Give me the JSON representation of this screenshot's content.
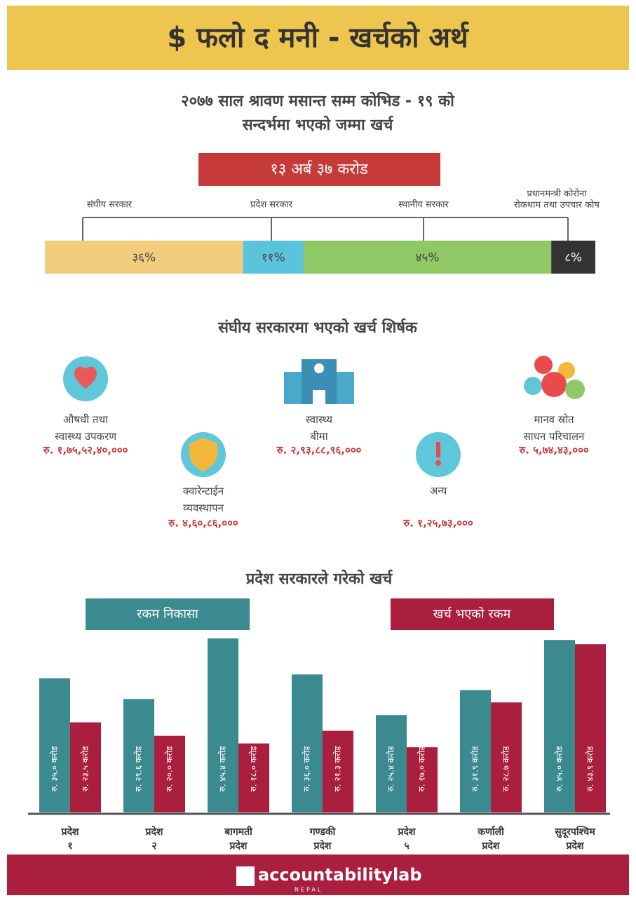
{
  "header": {
    "title": "$ फलो द मनी - खर्चको अर्थ"
  },
  "subtitle": [
    "२०७७ साल श्रावण मसान्त सम्म कोभिड - १९ को",
    "सन्दर्भमा भएको जम्मा खर्च"
  ],
  "total": "१३ अर्ब ३७ करोड",
  "chart_data": [
    {
      "type": "stacked_bar",
      "categories": [
        "संघीय सरकार",
        "प्रदेश सरकार",
        "स्थानीय सरकार",
        "प्रधानमन्त्री कोरोना रोकथाम तथा उपचार कोष"
      ],
      "values": [
        36,
        11,
        45,
        8
      ],
      "value_labels": [
        "३६%",
        "११%",
        "४५%",
        "८%"
      ],
      "colors": [
        "#f2cd7d",
        "#5bc3dc",
        "#8fc965",
        "#333333"
      ]
    },
    {
      "type": "bar",
      "title": "प्रदेश सरकारले गरेको खर्च",
      "categories": [
        "प्रदेश १",
        "प्रदेश २",
        "बागमती प्रदेश",
        "गण्डकी प्रदेश",
        "प्रदेश ५",
        "कर्णाली प्रदेश",
        "सुदूरपश्चिम प्रदेश"
      ],
      "series": [
        {
          "name": "रकम निकासा",
          "color": "#3a8a8f",
          "values": [
            35.0,
            29.6,
            45.4,
            36.0,
            25.4,
            31.9,
            45.0
          ],
          "value_labels": [
            "रु. ३५.० करोड",
            "रु. २९.६ करोड",
            "रु. ४५.४ करोड",
            "रु. ३६.० करोड",
            "रु. २५.४ करोड",
            "रु. ३१.९ करोड",
            "रु. ४५.० करोड"
          ]
        },
        {
          "name": "खर्च भएको रकम",
          "color": "#a91f3d",
          "values": [
            23.5,
            20.0,
            18.0,
            21.3,
            17.0,
            28.7,
            43.9
          ],
          "value_labels": [
            "रु. २३.५ करोड",
            "रु. २०.० करोड",
            "रु. १८.० करोड",
            "रु. २१.३ करोड",
            "रु. १७.० करोड",
            "रु. २८.७ करोड",
            "रु. ४३.९ करोड"
          ]
        }
      ]
    }
  ],
  "federal": {
    "title": "संघीय सरकारमा भएको खर्च शिर्षक",
    "items": [
      {
        "label": "औषधी तथा स्वास्थ्य उपकरण",
        "amount": "रु. १,७५,५२,४०,०००"
      },
      {
        "label": "क्वारेन्टाईन व्यवस्थापन",
        "amount": "रु. ४,६०,८६,०००"
      },
      {
        "label": "स्वास्थ्य बीमा",
        "amount": "रु. २,९३,८८,९६,०००"
      },
      {
        "label": "अन्य",
        "amount": "रु. १,२५,७३,०००"
      },
      {
        "label": "मानव स्रोत साधन परिचालन",
        "amount": "रु. ५,७४,४३,०००"
      }
    ]
  },
  "footer": {
    "brand": "accountabilitylab",
    "country": "NEPAL"
  }
}
